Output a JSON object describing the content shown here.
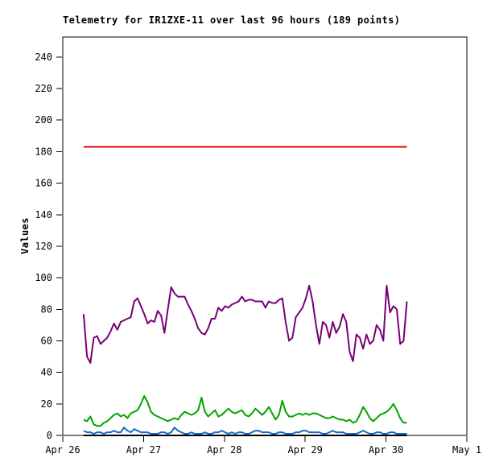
{
  "window": {
    "background": "#ffffff"
  },
  "chart_data": {
    "type": "line",
    "title": "Telemetry for IR1ZXE-11 over last 96 hours (189 points)",
    "ylabel": "Values",
    "xlabel": "",
    "ylim": [
      0,
      252.7
    ],
    "yticks": [
      0,
      20,
      40,
      60,
      80,
      100,
      120,
      140,
      160,
      180,
      200,
      220,
      240
    ],
    "xtick_labels": [
      "Apr 26",
      "Apr 27",
      "Apr 28",
      "Apr 29",
      "Apr 30",
      "May 1"
    ],
    "x_axis_total_hours": 120,
    "data_start_hour": 6.2,
    "data_span_hours": 96,
    "points_count": 189,
    "grid": false,
    "legend": false,
    "frame_color": "#000000",
    "background_color": "#ffffff",
    "series": [
      {
        "name": "red-line-constant",
        "color": "#e60000",
        "constant": 183
      },
      {
        "name": "purple-line",
        "color": "#770077",
        "values": [
          77,
          50,
          46,
          62,
          63,
          58,
          60,
          62,
          66,
          71,
          67,
          72,
          73,
          74,
          75,
          85,
          87,
          82,
          77,
          71,
          73,
          72,
          79,
          76,
          65,
          80,
          94,
          90,
          88,
          88,
          88,
          83,
          79,
          74,
          68,
          65,
          64,
          68,
          74,
          74,
          81,
          79,
          82,
          81,
          83,
          84,
          85,
          88,
          85,
          86,
          86,
          85,
          85,
          85,
          81,
          85,
          84,
          84,
          86,
          87,
          72,
          60,
          62,
          75,
          78,
          81,
          87,
          95,
          85,
          70,
          58,
          72,
          70,
          62,
          72,
          65,
          69,
          77,
          72,
          53,
          47,
          64,
          62,
          55,
          64,
          58,
          60,
          70,
          67,
          60,
          95,
          78,
          82,
          80,
          58,
          60,
          85
        ]
      },
      {
        "name": "green-line",
        "color": "#00a400",
        "values": [
          10,
          9,
          12,
          7,
          6,
          6,
          8,
          9,
          11,
          13,
          14,
          12,
          13,
          11,
          14,
          15,
          16,
          20,
          25,
          21,
          15,
          13,
          12,
          11,
          10,
          9,
          10,
          11,
          10,
          13,
          15,
          14,
          13,
          14,
          16,
          24,
          15,
          12,
          14,
          16,
          12,
          13,
          15,
          17,
          15,
          14,
          15,
          16,
          13,
          12,
          14,
          17,
          15,
          13,
          15,
          18,
          14,
          10,
          13,
          22,
          15,
          12,
          12,
          13,
          14,
          13,
          14,
          13,
          14,
          14,
          13,
          12,
          11,
          11,
          12,
          11,
          10,
          10,
          9,
          10,
          8,
          9,
          13,
          18,
          15,
          11,
          9,
          11,
          13,
          14,
          15,
          17,
          20,
          16,
          11,
          8,
          8
        ]
      },
      {
        "name": "black-line-constant",
        "color": "#000000",
        "constant": 0
      },
      {
        "name": "blue-line",
        "color": "#1569c7",
        "values": [
          3,
          2,
          2,
          1,
          2,
          2,
          1,
          2,
          2,
          3,
          2,
          2,
          5,
          3,
          2,
          4,
          3,
          2,
          2,
          2,
          1,
          1,
          1,
          2,
          2,
          1,
          2,
          5,
          3,
          2,
          1,
          1,
          2,
          1,
          1,
          1,
          2,
          1,
          1,
          2,
          2,
          3,
          2,
          1,
          2,
          1,
          2,
          2,
          1,
          1,
          2,
          3,
          3,
          2,
          2,
          2,
          1,
          1,
          2,
          2,
          1,
          1,
          1,
          2,
          2,
          3,
          3,
          2,
          2,
          2,
          2,
          1,
          1,
          2,
          3,
          2,
          2,
          2,
          1,
          1,
          1,
          1,
          2,
          3,
          2,
          1,
          1,
          2,
          2,
          1,
          1,
          2,
          2,
          1,
          1,
          1,
          1
        ]
      }
    ]
  }
}
